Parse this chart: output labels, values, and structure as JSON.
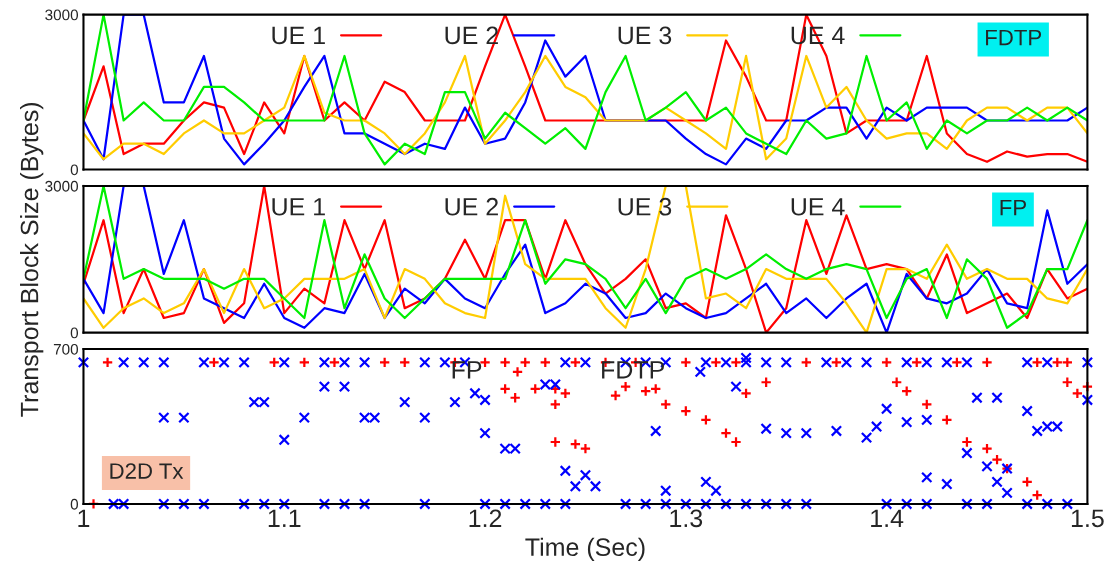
{
  "chart_data": [
    {
      "type": "line",
      "x": [
        1.0,
        1.01,
        1.02,
        1.03,
        1.04,
        1.05,
        1.06,
        1.07,
        1.08,
        1.09,
        1.1,
        1.11,
        1.12,
        1.13,
        1.14,
        1.15,
        1.16,
        1.17,
        1.18,
        1.19,
        1.2,
        1.21,
        1.22,
        1.23,
        1.24,
        1.25,
        1.26,
        1.27,
        1.28,
        1.29,
        1.3,
        1.31,
        1.32,
        1.33,
        1.34,
        1.35,
        1.36,
        1.37,
        1.38,
        1.39,
        1.4,
        1.41,
        1.42,
        1.43,
        1.44,
        1.45,
        1.46,
        1.47,
        1.48,
        1.49,
        1.5
      ],
      "xlim": [
        1,
        1.5
      ],
      "ylim": [
        0,
        3000
      ],
      "yticks": [
        0,
        3000
      ],
      "tick_labels": "y",
      "legend": "top",
      "annotations": [
        "FDTP"
      ],
      "series": [
        {
          "name": "UE 1",
          "color": "#ff0000",
          "values": [
            950,
            2000,
            300,
            500,
            500,
            950,
            1300,
            1200,
            300,
            1300,
            700,
            2200,
            950,
            1300,
            950,
            1700,
            1500,
            950,
            950,
            950,
            2000,
            3000,
            2000,
            950,
            950,
            950,
            950,
            950,
            950,
            950,
            950,
            950,
            2500,
            1800,
            950,
            950,
            3000,
            2200,
            700,
            950,
            950,
            950,
            2200,
            700,
            300,
            150,
            350,
            250,
            300,
            300,
            150
          ]
        },
        {
          "name": "UE 2",
          "color": "#0000ff",
          "values": [
            950,
            200,
            3000,
            3000,
            1300,
            1300,
            2200,
            600,
            100,
            500,
            950,
            1600,
            2200,
            700,
            700,
            500,
            300,
            500,
            400,
            1200,
            500,
            600,
            1300,
            2500,
            1800,
            2200,
            950,
            950,
            950,
            950,
            600,
            300,
            100,
            600,
            400,
            950,
            950,
            1200,
            1200,
            600,
            1200,
            950,
            1200,
            1200,
            1200,
            950,
            950,
            950,
            950,
            950,
            1200
          ]
        },
        {
          "name": "UE 3",
          "color": "#ffcc00",
          "values": [
            700,
            200,
            500,
            500,
            300,
            700,
            950,
            700,
            700,
            950,
            1200,
            2200,
            1100,
            950,
            950,
            700,
            300,
            700,
            1300,
            2200,
            500,
            950,
            1500,
            2200,
            1600,
            1400,
            950,
            950,
            950,
            1200,
            950,
            700,
            400,
            2200,
            200,
            600,
            2200,
            1200,
            1600,
            950,
            600,
            700,
            700,
            400,
            950,
            1200,
            1200,
            950,
            1200,
            1200,
            700
          ]
        },
        {
          "name": "UE 4",
          "color": "#00ee00",
          "values": [
            950,
            3000,
            950,
            1300,
            950,
            950,
            1600,
            1600,
            1300,
            950,
            950,
            950,
            950,
            2200,
            700,
            100,
            500,
            300,
            1500,
            1500,
            600,
            1100,
            800,
            500,
            800,
            400,
            1500,
            2200,
            950,
            1200,
            1500,
            950,
            1200,
            700,
            500,
            300,
            950,
            600,
            700,
            2200,
            950,
            1300,
            400,
            950,
            700,
            950,
            950,
            1200,
            950,
            1200,
            950
          ]
        }
      ]
    },
    {
      "type": "line",
      "x": [
        1.0,
        1.01,
        1.02,
        1.03,
        1.04,
        1.05,
        1.06,
        1.07,
        1.08,
        1.09,
        1.1,
        1.11,
        1.12,
        1.13,
        1.14,
        1.15,
        1.16,
        1.17,
        1.18,
        1.19,
        1.2,
        1.21,
        1.22,
        1.23,
        1.24,
        1.25,
        1.26,
        1.27,
        1.28,
        1.29,
        1.3,
        1.31,
        1.32,
        1.33,
        1.34,
        1.35,
        1.36,
        1.37,
        1.38,
        1.39,
        1.4,
        1.41,
        1.42,
        1.43,
        1.44,
        1.45,
        1.46,
        1.47,
        1.48,
        1.49,
        1.5
      ],
      "xlim": [
        1,
        1.5
      ],
      "ylim": [
        0,
        3000
      ],
      "yticks": [
        0,
        3000
      ],
      "tick_labels": "y",
      "legend": "top",
      "ylabel": "Transport Block Size (Bytes)",
      "annotations": [
        "FP"
      ],
      "series": [
        {
          "name": "UE 1",
          "color": "#ff0000",
          "values": [
            1000,
            2300,
            400,
            1300,
            300,
            400,
            1300,
            200,
            600,
            3000,
            400,
            900,
            600,
            2300,
            1300,
            2300,
            500,
            700,
            1100,
            1900,
            1100,
            2300,
            2300,
            1100,
            2300,
            1400,
            800,
            1100,
            1500,
            500,
            600,
            300,
            2400,
            1300,
            0,
            500,
            2300,
            1200,
            2400,
            1300,
            1400,
            1300,
            700,
            1600,
            400,
            600,
            800,
            300,
            1300,
            700,
            900
          ]
        },
        {
          "name": "UE 2",
          "color": "#0000ff",
          "values": [
            1100,
            400,
            3000,
            3000,
            1200,
            2300,
            700,
            500,
            300,
            1000,
            300,
            100,
            500,
            400,
            1200,
            300,
            900,
            600,
            1100,
            700,
            500,
            1200,
            1800,
            400,
            600,
            1000,
            800,
            300,
            400,
            800,
            500,
            300,
            400,
            700,
            1000,
            400,
            700,
            300,
            700,
            1000,
            0,
            1200,
            700,
            600,
            800,
            1300,
            600,
            500,
            2500,
            1000,
            1400
          ]
        },
        {
          "name": "UE 3",
          "color": "#ffcc00",
          "values": [
            700,
            100,
            500,
            700,
            400,
            600,
            1300,
            400,
            1300,
            500,
            700,
            1100,
            1100,
            1100,
            1300,
            300,
            1300,
            1100,
            600,
            400,
            300,
            2800,
            1400,
            1100,
            1100,
            1100,
            500,
            100,
            1300,
            3000,
            3000,
            700,
            800,
            500,
            1300,
            1100,
            1100,
            1100,
            600,
            0,
            1300,
            1300,
            1100,
            1800,
            1100,
            1300,
            1100,
            1100,
            700,
            600,
            1300
          ]
        },
        {
          "name": "UE 4",
          "color": "#00ee00",
          "values": [
            1100,
            3000,
            1100,
            1300,
            1100,
            1100,
            1100,
            900,
            1100,
            1100,
            700,
            300,
            2300,
            500,
            1600,
            700,
            300,
            700,
            1100,
            1100,
            1100,
            1100,
            2300,
            1000,
            1500,
            1400,
            1100,
            500,
            1100,
            400,
            1100,
            1300,
            1100,
            1300,
            1600,
            1300,
            1100,
            1300,
            1400,
            1300,
            300,
            1100,
            1300,
            300,
            1500,
            1100,
            100,
            400,
            1300,
            1300,
            2300
          ]
        }
      ]
    },
    {
      "type": "scatter",
      "xlim": [
        1,
        1.5
      ],
      "ylim": [
        0,
        700
      ],
      "yticks": [
        0,
        700
      ],
      "xticks": [
        1,
        1.1,
        1.2,
        1.3,
        1.4,
        1.5
      ],
      "xlabel": "Time (Sec)",
      "legend": "top",
      "annotations": [
        "D2D Tx"
      ],
      "series": [
        {
          "name": "FP",
          "color": "#ff0000",
          "marker": "cross",
          "x": [
            1.012,
            1.065,
            1.095,
            1.11,
            1.125,
            1.15,
            1.16,
            1.185,
            1.2,
            1.21,
            1.22,
            1.23,
            1.245,
            1.26,
            1.275,
            1.3,
            1.315,
            1.325,
            1.36,
            1.375,
            1.4,
            1.415,
            1.435,
            1.45,
            1.475,
            1.485,
            1.49,
            1.21,
            1.215,
            1.225,
            1.235,
            1.24,
            1.235,
            1.235,
            1.245,
            1.25,
            1.265,
            1.27,
            1.28,
            1.285,
            1.29,
            1.3,
            1.31,
            1.32,
            1.325,
            1.33,
            1.34,
            1.405,
            1.41,
            1.42,
            1.43,
            1.44,
            1.45,
            1.455,
            1.46,
            1.47,
            1.475,
            1.49,
            1.5,
            1.495,
            1.005
          ],
          "values": [
            640,
            640,
            640,
            640,
            640,
            640,
            640,
            640,
            640,
            640,
            640,
            640,
            640,
            640,
            640,
            640,
            640,
            640,
            640,
            640,
            640,
            640,
            640,
            640,
            640,
            640,
            640,
            520,
            480,
            520,
            520,
            500,
            450,
            280,
            270,
            250,
            490,
            530,
            510,
            520,
            450,
            420,
            380,
            320,
            280,
            500,
            550,
            550,
            510,
            450,
            380,
            280,
            250,
            200,
            160,
            100,
            40,
            550,
            530,
            500,
            0
          ]
        },
        {
          "name": "FDTP",
          "color": "#0000ff",
          "x": [
            1.0,
            1.02,
            1.03,
            1.04,
            1.06,
            1.07,
            1.08,
            1.1,
            1.12,
            1.13,
            1.14,
            1.17,
            1.18,
            1.19,
            1.24,
            1.25,
            1.27,
            1.28,
            1.29,
            1.31,
            1.32,
            1.33,
            1.34,
            1.35,
            1.37,
            1.38,
            1.39,
            1.41,
            1.42,
            1.43,
            1.44,
            1.47,
            1.48,
            1.5,
            1.015,
            1.02,
            1.04,
            1.05,
            1.06,
            1.08,
            1.09,
            1.1,
            1.12,
            1.13,
            1.14,
            1.17,
            1.2,
            1.21,
            1.22,
            1.23,
            1.24,
            1.27,
            1.28,
            1.29,
            1.3,
            1.31,
            1.32,
            1.33,
            1.34,
            1.35,
            1.36,
            1.4,
            1.41,
            1.42,
            1.44,
            1.45,
            1.47,
            1.48,
            1.49,
            1.04,
            1.05,
            1.085,
            1.09,
            1.1,
            1.11,
            1.14,
            1.145,
            1.12,
            1.13,
            1.16,
            1.17,
            1.185,
            1.195,
            1.2,
            1.2,
            1.21,
            1.215,
            1.23,
            1.235,
            1.24,
            1.245,
            1.25,
            1.255,
            1.285,
            1.29,
            1.31,
            1.315,
            1.325,
            1.33,
            1.34,
            1.35,
            1.36,
            1.375,
            1.39,
            1.395,
            1.4,
            1.41,
            1.42,
            1.42,
            1.43,
            1.445,
            1.455,
            1.45,
            1.44,
            1.455,
            1.46,
            1.46,
            1.47,
            1.475,
            1.48,
            1.485,
            1.5
          ],
          "values": [
            640,
            640,
            640,
            640,
            640,
            640,
            640,
            640,
            640,
            640,
            640,
            640,
            640,
            640,
            640,
            640,
            640,
            640,
            640,
            640,
            640,
            640,
            640,
            640,
            640,
            640,
            640,
            640,
            640,
            640,
            640,
            640,
            640,
            640,
            0,
            0,
            0,
            0,
            0,
            0,
            0,
            0,
            0,
            0,
            0,
            0,
            0,
            0,
            0,
            0,
            0,
            0,
            0,
            0,
            0,
            0,
            0,
            0,
            0,
            0,
            0,
            0,
            0,
            0,
            0,
            0,
            0,
            0,
            0,
            390,
            390,
            460,
            460,
            290,
            390,
            390,
            390,
            530,
            530,
            460,
            390,
            460,
            500,
            470,
            320,
            250,
            250,
            540,
            540,
            150,
            80,
            130,
            80,
            330,
            60,
            100,
            60,
            530,
            660,
            340,
            320,
            320,
            330,
            300,
            350,
            430,
            370,
            380,
            120,
            90,
            480,
            480,
            170,
            230,
            100,
            50,
            160,
            420,
            330,
            350,
            350,
            470
          ]
        }
      ]
    }
  ]
}
